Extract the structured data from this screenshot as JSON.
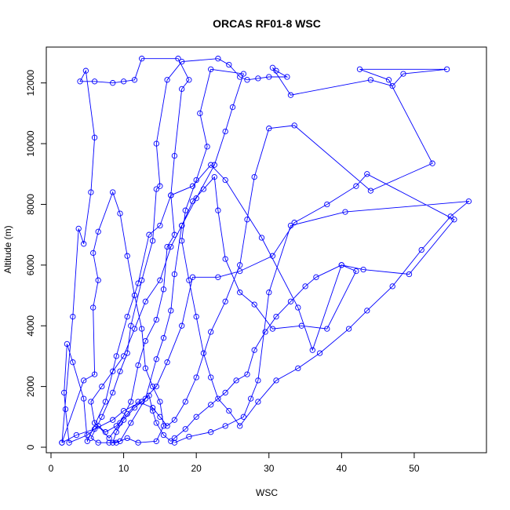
{
  "chart_data": {
    "type": "line",
    "title": "ORCAS RF01-8 WSC",
    "xlabel": "WSC",
    "ylabel": "Altitude (m)",
    "xlim": [
      0,
      58
    ],
    "ylim": [
      0,
      13000
    ],
    "xticks": [
      0,
      10,
      20,
      30,
      40,
      50
    ],
    "yticks": [
      0,
      2000,
      4000,
      6000,
      8000,
      10000,
      12000
    ],
    "grid": false,
    "series_color": "#0000FF",
    "series": [
      {
        "marker": "open-circle",
        "points": [
          [
            1.5,
            150
          ],
          [
            3.5,
            400
          ],
          [
            6.0,
            600
          ],
          [
            8.5,
            900
          ],
          [
            10.0,
            1200
          ],
          [
            12.5,
            1500
          ],
          [
            14.5,
            2000
          ],
          [
            16.0,
            2800
          ],
          [
            18.0,
            4000
          ],
          [
            19.5,
            5600
          ],
          [
            23.0,
            5600
          ],
          [
            26.0,
            5800
          ],
          [
            30.5,
            6300
          ],
          [
            33.5,
            7400
          ],
          [
            38.0,
            8000
          ],
          [
            42.0,
            8600
          ],
          [
            43.5,
            9000
          ],
          [
            55.5,
            7500
          ],
          [
            49.3,
            5700
          ],
          [
            43.0,
            5850
          ],
          [
            40.0,
            6000
          ],
          [
            36.0,
            3200
          ],
          [
            34.0,
            4600
          ],
          [
            29.0,
            6900
          ],
          [
            24.0,
            8800
          ],
          [
            22.0,
            9300
          ],
          [
            19.5,
            8600
          ],
          [
            16.5,
            8300
          ],
          [
            15.0,
            7300
          ],
          [
            13.5,
            7000
          ],
          [
            12.0,
            5400
          ],
          [
            10.5,
            4300
          ],
          [
            9.0,
            3000
          ],
          [
            7.5,
            1500
          ],
          [
            5.0,
            200
          ],
          [
            4.5,
            1600
          ],
          [
            3.0,
            2800
          ],
          [
            2.2,
            3400
          ],
          [
            1.8,
            1800
          ],
          [
            2.0,
            1250
          ],
          [
            2.5,
            150
          ],
          [
            5.0,
            400
          ],
          [
            6.5,
            700
          ],
          [
            8.0,
            300
          ],
          [
            9.5,
            800
          ],
          [
            11.0,
            1500
          ],
          [
            12.0,
            2700
          ],
          [
            13.0,
            3500
          ],
          [
            14.5,
            4200
          ],
          [
            15.5,
            5200
          ],
          [
            16.0,
            6600
          ],
          [
            17.0,
            7000
          ],
          [
            16.5,
            8300
          ],
          [
            17.0,
            9600
          ],
          [
            18.0,
            11800
          ],
          [
            19.0,
            12100
          ],
          [
            17.5,
            12800
          ],
          [
            12.5,
            12800
          ],
          [
            11.5,
            12100
          ],
          [
            10.0,
            12050
          ],
          [
            8.5,
            12000
          ],
          [
            6.0,
            12050
          ],
          [
            4.0,
            12050
          ],
          [
            4.8,
            12400
          ],
          [
            6.0,
            10200
          ],
          [
            5.5,
            8400
          ],
          [
            4.5,
            6700
          ],
          [
            3.8,
            7200
          ],
          [
            3.0,
            4300
          ],
          [
            1.5,
            150
          ],
          [
            4.5,
            2200
          ],
          [
            6.0,
            2400
          ],
          [
            5.8,
            4600
          ],
          [
            6.5,
            5500
          ],
          [
            5.8,
            6400
          ],
          [
            6.5,
            7100
          ],
          [
            8.5,
            8400
          ],
          [
            9.5,
            7700
          ],
          [
            10.5,
            6300
          ],
          [
            11.5,
            5000
          ],
          [
            12.5,
            3900
          ],
          [
            13.0,
            2600
          ],
          [
            14.0,
            2000
          ],
          [
            15.0,
            1500
          ],
          [
            15.5,
            700
          ],
          [
            14.5,
            200
          ],
          [
            12.0,
            150
          ],
          [
            10.5,
            300
          ],
          [
            9.0,
            150
          ],
          [
            8.5,
            150
          ],
          [
            9.0,
            500
          ],
          [
            10.0,
            900
          ],
          [
            11.5,
            1300
          ],
          [
            12.5,
            1500
          ],
          [
            13.5,
            1700
          ],
          [
            14.0,
            1200
          ],
          [
            14.5,
            800
          ],
          [
            15.5,
            400
          ],
          [
            16.5,
            200
          ],
          [
            17.0,
            300
          ],
          [
            18.5,
            600
          ],
          [
            20.0,
            1000
          ],
          [
            22.0,
            1400
          ],
          [
            24.0,
            1800
          ],
          [
            25.5,
            2200
          ],
          [
            27.0,
            2400
          ],
          [
            28.0,
            3200
          ],
          [
            29.5,
            3800
          ],
          [
            31.0,
            4300
          ],
          [
            33.0,
            4800
          ],
          [
            35.0,
            5300
          ],
          [
            36.5,
            5600
          ],
          [
            40.0,
            6000
          ],
          [
            42.0,
            5800
          ],
          [
            38.0,
            3900
          ],
          [
            34.5,
            4000
          ],
          [
            30.5,
            3900
          ],
          [
            28.0,
            4700
          ],
          [
            26.0,
            5100
          ],
          [
            24.0,
            6200
          ],
          [
            23.0,
            7800
          ],
          [
            22.5,
            8900
          ],
          [
            21.0,
            8500
          ],
          [
            19.5,
            8100
          ],
          [
            18.0,
            7300
          ],
          [
            17.0,
            5700
          ],
          [
            16.5,
            4500
          ],
          [
            15.5,
            3600
          ],
          [
            14.5,
            2900
          ],
          [
            13.0,
            1600
          ],
          [
            11.0,
            800
          ],
          [
            9.5,
            200
          ],
          [
            8.0,
            150
          ],
          [
            6.5,
            150
          ],
          [
            5.5,
            300
          ],
          [
            7.0,
            1000
          ],
          [
            8.5,
            1800
          ],
          [
            9.5,
            2500
          ],
          [
            10.5,
            3100
          ],
          [
            11.0,
            4000
          ],
          [
            12.5,
            5500
          ],
          [
            14.0,
            6800
          ],
          [
            14.5,
            8500
          ],
          [
            15.0,
            8600
          ],
          [
            14.5,
            10000
          ],
          [
            16.0,
            12100
          ],
          [
            18.0,
            12700
          ],
          [
            23.0,
            12800
          ],
          [
            24.5,
            12600
          ],
          [
            26.0,
            12200
          ],
          [
            27.0,
            12100
          ],
          [
            28.5,
            12150
          ],
          [
            30.0,
            12200
          ],
          [
            32.5,
            12200
          ],
          [
            31.0,
            12400
          ],
          [
            30.5,
            12500
          ],
          [
            33.0,
            11600
          ],
          [
            44.0,
            12100
          ],
          [
            47.0,
            11900
          ],
          [
            48.5,
            12300
          ],
          [
            54.5,
            12450
          ],
          [
            42.5,
            12450
          ],
          [
            46.5,
            12100
          ],
          [
            52.5,
            9350
          ],
          [
            44.0,
            8450
          ],
          [
            33.5,
            10600
          ],
          [
            30.0,
            10500
          ],
          [
            28.0,
            8900
          ],
          [
            27.0,
            7500
          ],
          [
            26.0,
            6000
          ],
          [
            24.0,
            4800
          ],
          [
            22.0,
            3800
          ],
          [
            20.0,
            2300
          ],
          [
            18.5,
            1500
          ],
          [
            17.0,
            900
          ],
          [
            16.0,
            700
          ],
          [
            15.0,
            1000
          ],
          [
            14.0,
            1300
          ],
          [
            12.0,
            1500
          ],
          [
            10.5,
            1100
          ],
          [
            9.0,
            700
          ],
          [
            7.5,
            500
          ],
          [
            6.0,
            800
          ],
          [
            5.5,
            1500
          ],
          [
            7.0,
            2000
          ],
          [
            8.5,
            2500
          ],
          [
            10.0,
            3000
          ],
          [
            11.5,
            3900
          ],
          [
            13.0,
            4800
          ],
          [
            15.0,
            5500
          ],
          [
            16.5,
            6600
          ],
          [
            18.0,
            7300
          ],
          [
            20.0,
            8200
          ],
          [
            22.5,
            9300
          ],
          [
            24.0,
            10400
          ],
          [
            25.0,
            11200
          ],
          [
            26.5,
            12300
          ],
          [
            22.0,
            12450
          ],
          [
            20.5,
            11000
          ],
          [
            21.5,
            9900
          ],
          [
            20.0,
            8800
          ],
          [
            18.5,
            7800
          ],
          [
            18.0,
            6800
          ],
          [
            19.0,
            5500
          ],
          [
            20.0,
            4300
          ],
          [
            21.0,
            3100
          ],
          [
            22.0,
            2300
          ],
          [
            23.0,
            1600
          ],
          [
            24.5,
            1200
          ],
          [
            26.0,
            700
          ],
          [
            28.5,
            1500
          ],
          [
            31.0,
            2200
          ],
          [
            34.0,
            2600
          ],
          [
            37.0,
            3100
          ],
          [
            41.0,
            3900
          ],
          [
            43.5,
            4500
          ],
          [
            47.0,
            5300
          ],
          [
            51.0,
            6500
          ],
          [
            55.0,
            7600
          ],
          [
            57.5,
            8100
          ],
          [
            40.5,
            7750
          ],
          [
            33.0,
            7300
          ],
          [
            30.0,
            5100
          ],
          [
            28.5,
            2200
          ],
          [
            27.5,
            1600
          ],
          [
            26.5,
            1000
          ],
          [
            24.0,
            700
          ],
          [
            22.0,
            500
          ],
          [
            19.0,
            350
          ],
          [
            17.0,
            150
          ]
        ]
      }
    ]
  }
}
